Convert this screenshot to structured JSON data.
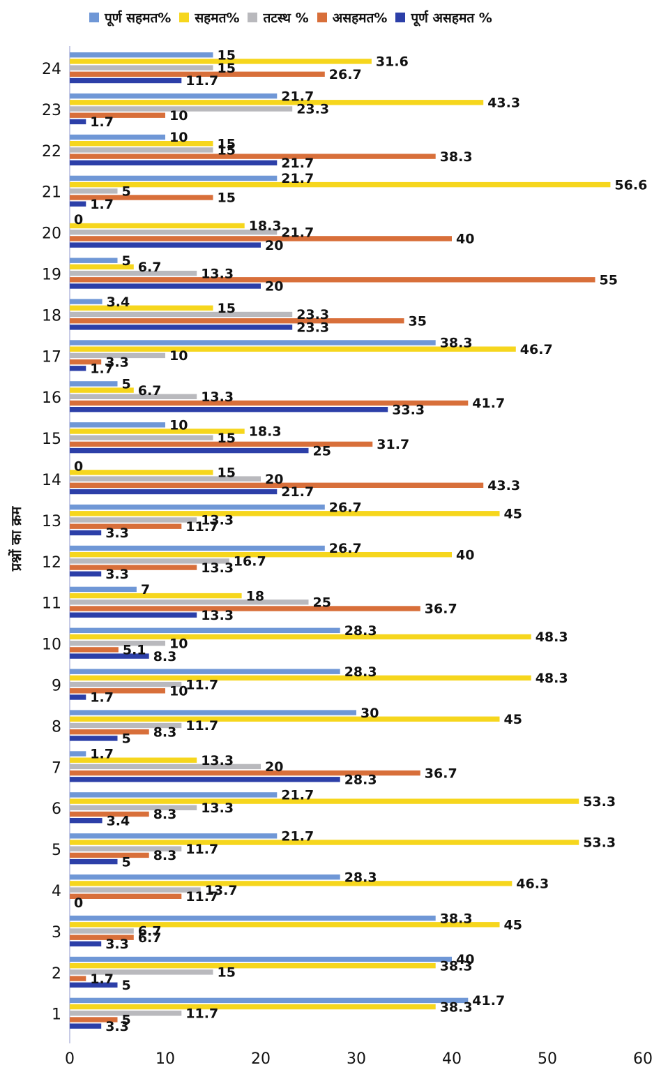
{
  "chart_data": {
    "type": "bar",
    "orientation": "horizontal",
    "ylabel": "प्रश्नों का क्रम",
    "xlabel": "",
    "xlim": [
      0,
      60
    ],
    "xticks": [
      0,
      10,
      20,
      30,
      40,
      50,
      60
    ],
    "categories": [
      "1",
      "2",
      "3",
      "4",
      "5",
      "6",
      "7",
      "8",
      "9",
      "10",
      "11",
      "12",
      "13",
      "14",
      "15",
      "16",
      "17",
      "18",
      "19",
      "20",
      "21",
      "22",
      "23",
      "24"
    ],
    "series": [
      {
        "name": "पूर्ण सहमत%",
        "color": "#6f97d6",
        "values": [
          41.7,
          40,
          38.3,
          28.3,
          21.7,
          21.7,
          1.7,
          30,
          28.3,
          28.3,
          7,
          26.7,
          26.7,
          0,
          10,
          5,
          38.3,
          3.4,
          5,
          0,
          21.7,
          10,
          21.7,
          15
        ]
      },
      {
        "name": "सहमत%",
        "color": "#f6d61d",
        "values": [
          38.3,
          38.3,
          45,
          46.3,
          53.3,
          53.3,
          13.3,
          45,
          48.3,
          48.3,
          18,
          40,
          45,
          15,
          18.3,
          6.7,
          46.7,
          15,
          6.7,
          18.3,
          56.6,
          15,
          43.3,
          31.6
        ]
      },
      {
        "name": "तटस्थ %",
        "color": "#b9b9bd",
        "values": [
          11.7,
          15,
          6.7,
          13.7,
          11.7,
          13.3,
          20,
          11.7,
          11.7,
          10,
          25,
          16.7,
          13.3,
          20,
          15,
          13.3,
          10,
          23.3,
          13.3,
          21.7,
          5,
          15,
          23.3,
          15
        ]
      },
      {
        "name": "असहमत%",
        "color": "#d86f3a",
        "values": [
          5,
          1.7,
          6.7,
          11.7,
          8.3,
          8.3,
          36.7,
          8.3,
          10,
          5.1,
          36.7,
          13.3,
          11.7,
          43.3,
          31.7,
          41.7,
          3.3,
          35,
          55,
          40,
          15,
          38.3,
          10,
          26.7
        ]
      },
      {
        "name": "पूर्ण असहमत %",
        "color": "#2c3fa8",
        "values": [
          3.3,
          5,
          3.3,
          0,
          5,
          3.4,
          28.3,
          5,
          1.7,
          8.3,
          13.3,
          3.3,
          3.3,
          21.7,
          25,
          33.3,
          1.7,
          23.3,
          20,
          20,
          1.7,
          21.7,
          1.7,
          11.7
        ]
      }
    ]
  }
}
